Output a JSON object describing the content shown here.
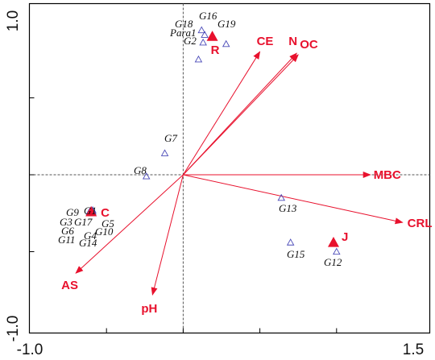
{
  "colors": {
    "vector": "#e8112d",
    "group_marker": "#4a4ab8",
    "centroid": "#e8112d",
    "axis_line": "#555555",
    "frame": "#000000"
  },
  "chart_data": {
    "type": "scatter",
    "title": "",
    "xlabel": "",
    "ylabel": "",
    "xlim": [
      -1.0,
      1.5
    ],
    "ylim": [
      -1.0,
      1.0
    ],
    "x_tick_labels": [
      {
        "value": -1.0,
        "label": "-1.0"
      },
      {
        "value": 1.5,
        "label": "1.5"
      }
    ],
    "y_tick_labels": [
      {
        "value": 1.0,
        "label": "1.0"
      },
      {
        "value": -1.0,
        "label": "-1.0"
      }
    ],
    "grid": false,
    "vectors": [
      {
        "name": "CE",
        "x": 0.5,
        "y": 0.8
      },
      {
        "name": "N",
        "x": 0.74,
        "y": 0.79
      },
      {
        "name": "OC",
        "x": 0.75,
        "y": 0.78
      },
      {
        "name": "MBC",
        "x": 1.22,
        "y": 0.0
      },
      {
        "name": "CRL",
        "x": 1.43,
        "y": -0.31
      },
      {
        "name": "AS",
        "x": -0.7,
        "y": -0.64
      },
      {
        "name": "pH",
        "x": -0.2,
        "y": -0.78
      }
    ],
    "centroids": [
      {
        "name": "R",
        "x": 0.19,
        "y": 0.9
      },
      {
        "name": "C",
        "x": -0.6,
        "y": -0.24
      },
      {
        "name": "J",
        "x": 0.98,
        "y": -0.44
      }
    ],
    "groups": [
      {
        "name": "G16",
        "x": 0.12,
        "y": 0.94
      },
      {
        "name": "G18",
        "x": 0.14,
        "y": 0.91
      },
      {
        "name": "G19",
        "x": 0.28,
        "y": 0.85
      },
      {
        "name": "Para1",
        "x": 0.13,
        "y": 0.86
      },
      {
        "name": "G2",
        "x": 0.1,
        "y": 0.75
      },
      {
        "name": "G7",
        "x": -0.12,
        "y": 0.14
      },
      {
        "name": "G8",
        "x": -0.24,
        "y": -0.01
      },
      {
        "name": "G13",
        "x": 0.64,
        "y": -0.15
      },
      {
        "name": "G15",
        "x": 0.7,
        "y": -0.44
      },
      {
        "name": "G12",
        "x": 1.0,
        "y": -0.5
      },
      {
        "name": "G9",
        "x": -0.6,
        "y": -0.23
      },
      {
        "name": "G1",
        "x": -0.59,
        "y": -0.23
      },
      {
        "name": "G3",
        "x": -0.61,
        "y": -0.24
      },
      {
        "name": "G17",
        "x": -0.59,
        "y": -0.24
      },
      {
        "name": "G5",
        "x": -0.6,
        "y": -0.24
      },
      {
        "name": "G6",
        "x": -0.6,
        "y": -0.25
      },
      {
        "name": "G10",
        "x": -0.59,
        "y": -0.25
      },
      {
        "name": "G4",
        "x": -0.61,
        "y": -0.25
      },
      {
        "name": "G11",
        "x": -0.6,
        "y": -0.24
      },
      {
        "name": "G14",
        "x": -0.6,
        "y": -0.25
      }
    ]
  }
}
